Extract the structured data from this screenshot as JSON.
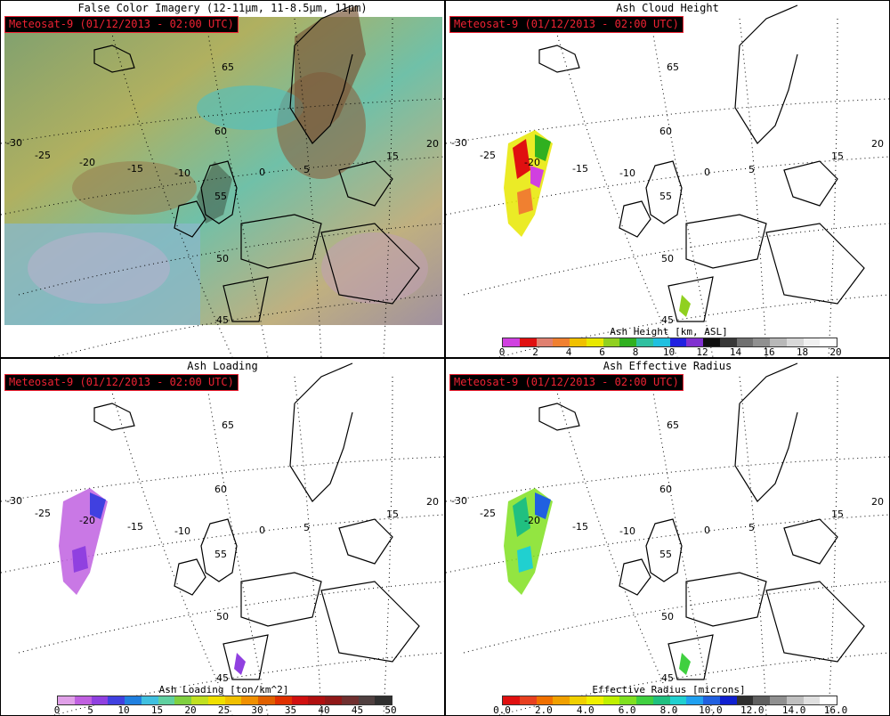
{
  "panels": {
    "false_color": {
      "title": "False Color Imagery (12-11μm, 11-8.5μm, 11μm)",
      "stamp": "Meteosat-9  (01/12/2013 - 02:00 UTC)"
    },
    "height": {
      "title": "Ash Cloud Height",
      "stamp": "Meteosat-9  (01/12/2013 - 02:00 UTC)",
      "colorbar_label": "Ash Height [km, ASL]",
      "ticks": [
        "0",
        "2",
        "4",
        "6",
        "8",
        "10",
        "12",
        "14",
        "16",
        "18",
        "20"
      ],
      "colors": [
        "#d040e0",
        "#e01010",
        "#e08070",
        "#f08030",
        "#f0c000",
        "#e8e800",
        "#90d020",
        "#30b020",
        "#30c0a0",
        "#20c0e0",
        "#2020e0",
        "#8030d0",
        "#101010",
        "#383838",
        "#707070",
        "#909090",
        "#b8b8b8",
        "#d8d8d8",
        "#f0f0f0",
        "#ffffff"
      ]
    },
    "loading": {
      "title": "Ash Loading",
      "stamp": "Meteosat-9  (01/12/2013 - 02:00 UTC)",
      "colorbar_label": "Ash Loading [ton/km^2]",
      "ticks": [
        "0",
        "5",
        "10",
        "15",
        "20",
        "25",
        "30",
        "35",
        "40",
        "45",
        "50"
      ],
      "colors": [
        "#e0a0e8",
        "#c060e0",
        "#9040e0",
        "#4040e0",
        "#2080e0",
        "#40c0e0",
        "#60d0a0",
        "#80d040",
        "#c0e020",
        "#f0e000",
        "#f0c000",
        "#f09000",
        "#e06000",
        "#e03000",
        "#d01010",
        "#b01010",
        "#901818",
        "#703030",
        "#504040",
        "#303030"
      ]
    },
    "radius": {
      "title": "Ash Effective Radius",
      "stamp": "Meteosat-9  (01/12/2013 - 02:00 UTC)",
      "colorbar_label": "Effective Radius [microns]",
      "ticks": [
        "0.0",
        "2.0",
        "4.0",
        "6.0",
        "8.0",
        "10.0",
        "12.0",
        "14.0",
        "16.0"
      ],
      "colors": [
        "#e01010",
        "#e84020",
        "#f07000",
        "#f0a000",
        "#f0d000",
        "#f0f000",
        "#c0f000",
        "#80e020",
        "#40d040",
        "#20c080",
        "#20d0d0",
        "#20a0f0",
        "#2060e0",
        "#1020d0",
        "#303030",
        "#606060",
        "#909090",
        "#c0c0c0",
        "#e0e0e0",
        "#ffffff"
      ]
    }
  },
  "grid_labels": {
    "lat": [
      "65",
      "60",
      "55",
      "50",
      "45"
    ],
    "lon": [
      "-30",
      "-25",
      "-20",
      "-15",
      "-10",
      "0",
      "5",
      "15",
      "20"
    ]
  }
}
